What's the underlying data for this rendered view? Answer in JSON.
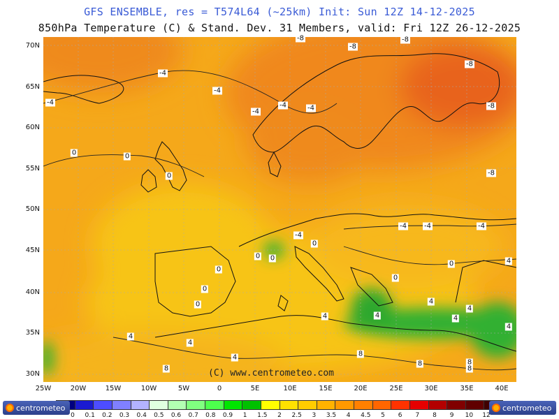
{
  "header": {
    "title_line1": "GFS ENSEMBLE, res = T574L64 (~25km)   Init: Sun 12Z 14-12-2025",
    "title_line2": "850hPa Temperature (C) & Stand. Dev.   31 Members, valid: Fri 12Z 26-12-2025"
  },
  "map": {
    "copyright": "(C) www.centrometeo.com",
    "lat_labels": [
      "70N",
      "65N",
      "60N",
      "55N",
      "50N",
      "45N",
      "40N",
      "35N",
      "30N"
    ],
    "lon_labels": [
      "25W",
      "20W",
      "15W",
      "10W",
      "5W",
      "0",
      "5E",
      "10E",
      "15E",
      "20E",
      "25E",
      "30E",
      "35E",
      "40E"
    ],
    "contour_labels": [
      "-8",
      "-8",
      "-8",
      "-8",
      "-8",
      "-8",
      "-4",
      "-4",
      "-4",
      "-4",
      "-4",
      "-4",
      "-4",
      "-4",
      "-4",
      "-4",
      "0",
      "0",
      "0",
      "0",
      "0",
      "0",
      "0",
      "0",
      "0",
      "0",
      "0",
      "4",
      "4",
      "4",
      "4",
      "4",
      "4",
      "4",
      "4",
      "4",
      "4",
      "8",
      "8",
      "8",
      "8",
      "8"
    ],
    "colors": {
      "ocean_orange": "#f2a01a",
      "land_yellow": "#f7c419",
      "cold_deep": "#e8641c",
      "green": "#33b033"
    }
  },
  "colorbar": {
    "tick_labels": [
      "0",
      "0.1",
      "0.2",
      "0.3",
      "0.4",
      "0.5",
      "0.6",
      "0.7",
      "0.8",
      "0.9",
      "1",
      "1.5",
      "2",
      "2.5",
      "3",
      "3.5",
      "4",
      "4.5",
      "5",
      "6",
      "7",
      "8",
      "9",
      "10",
      "12"
    ],
    "colors": [
      "#000080",
      "#1a1ad0",
      "#4d4dff",
      "#8080ff",
      "#b3b3ff",
      "#e0ffe0",
      "#b3ffb3",
      "#80ff80",
      "#4dff4d",
      "#00e600",
      "#00c000",
      "#ffff00",
      "#ffe100",
      "#ffcc00",
      "#ffb300",
      "#ff9900",
      "#ff8000",
      "#ff6600",
      "#ff3300",
      "#e60000",
      "#b30000",
      "#800000",
      "#600000",
      "#400000"
    ]
  },
  "logos": {
    "left": "centrometeo",
    "right": "centrometeo"
  }
}
